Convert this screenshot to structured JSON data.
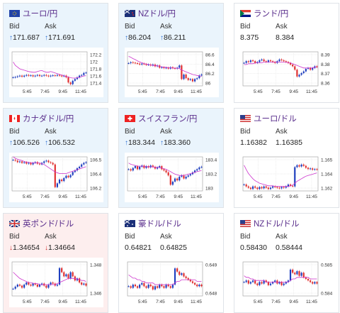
{
  "colors": {
    "up_bg": "#eaf4fc",
    "down_bg": "#fdeeee",
    "title": "#5a2e8c",
    "up_arrow": "#2a6fd4",
    "down_arrow": "#d23030",
    "candle_up": "#1f3fbf",
    "candle_down": "#e03030",
    "ma_line": "#cc33cc"
  },
  "labels": {
    "bid": "Bid",
    "ask": "Ask"
  },
  "xticks": [
    "5:45",
    "7:45",
    "9:45",
    "11:45"
  ],
  "cards": [
    {
      "title": "ユーロ/円",
      "flag": "eu",
      "state": "up",
      "arrow": "↑",
      "bid": "171.687",
      "ask": "171.691",
      "yticks": [
        "172.2",
        "172",
        "171.8",
        "171.6",
        "171.4"
      ],
      "chart_data": {
        "type": "candlestick",
        "ylim": [
          171.3,
          172.3
        ],
        "close": [
          171.55,
          171.56,
          171.58,
          171.6,
          171.57,
          171.6,
          171.62,
          171.6,
          171.61,
          171.58,
          171.6,
          171.62,
          171.59,
          171.6,
          171.62,
          171.6,
          171.58,
          171.6,
          171.61,
          171.6,
          171.62,
          171.6,
          171.58,
          171.6,
          171.55,
          171.4,
          171.35,
          171.45,
          171.5,
          171.55,
          171.6,
          171.62,
          171.68,
          171.69
        ],
        "ma": [
          172.0,
          171.9,
          171.85,
          171.8,
          171.78,
          171.76,
          171.74,
          171.72,
          171.71,
          171.7,
          171.7,
          171.72,
          171.74,
          171.75,
          171.72,
          171.7,
          171.7,
          171.72,
          171.7,
          171.68,
          171.66,
          171.64,
          171.62,
          171.6,
          171.58,
          171.56,
          171.54,
          171.53,
          171.53,
          171.54,
          171.55,
          171.57,
          171.59,
          171.6
        ]
      }
    },
    {
      "title": "NZドル/円",
      "flag": "nz",
      "state": "up",
      "arrow": "↑",
      "bid": "86.204",
      "ask": "86.211",
      "yticks": [
        "86.6",
        "86.4",
        "86.2",
        "86"
      ],
      "chart_data": {
        "type": "candlestick",
        "ylim": [
          85.95,
          86.7
        ],
        "close": [
          86.45,
          86.47,
          86.46,
          86.45,
          86.44,
          86.42,
          86.44,
          86.43,
          86.41,
          86.42,
          86.4,
          86.42,
          86.38,
          86.4,
          86.35,
          86.36,
          86.34,
          86.35,
          86.33,
          86.36,
          86.34,
          86.33,
          86.35,
          86.4,
          86.1,
          86.2,
          86.12,
          86.08,
          86.1,
          86.05,
          86.1,
          86.12,
          86.18,
          86.2
        ],
        "ma": [
          86.6,
          86.58,
          86.55,
          86.53,
          86.5,
          86.48,
          86.46,
          86.44,
          86.43,
          86.42,
          86.41,
          86.4,
          86.4,
          86.39,
          86.38,
          86.37,
          86.36,
          86.36,
          86.35,
          86.35,
          86.34,
          86.34,
          86.34,
          86.33,
          86.3,
          86.28,
          86.26,
          86.24,
          86.22,
          86.2,
          86.19,
          86.18,
          86.17,
          86.16
        ]
      }
    },
    {
      "title": "ランド/円",
      "flag": "za",
      "state": "flat",
      "arrow": "",
      "bid": "8.375",
      "ask": "8.384",
      "yticks": [
        "8.39",
        "8.38",
        "8.37",
        "8.36"
      ],
      "chart_data": {
        "type": "candlestick",
        "ylim": [
          8.355,
          8.395
        ],
        "close": [
          8.382,
          8.384,
          8.383,
          8.385,
          8.384,
          8.382,
          8.383,
          8.385,
          8.386,
          8.384,
          8.383,
          8.385,
          8.384,
          8.383,
          8.382,
          8.384,
          8.386,
          8.385,
          8.384,
          8.383,
          8.382,
          8.38,
          8.378,
          8.374,
          8.366,
          8.368,
          8.37,
          8.372,
          8.375,
          8.376,
          8.374,
          8.376,
          8.378,
          8.377
        ],
        "ma": [
          8.38,
          8.38,
          8.381,
          8.381,
          8.381,
          8.382,
          8.382,
          8.382,
          8.382,
          8.383,
          8.383,
          8.383,
          8.383,
          8.383,
          8.383,
          8.383,
          8.383,
          8.383,
          8.383,
          8.383,
          8.382,
          8.382,
          8.381,
          8.38,
          8.379,
          8.378,
          8.377,
          8.376,
          8.376,
          8.376,
          8.376,
          8.376,
          8.377,
          8.377
        ]
      }
    },
    {
      "title": "カナダドル/円",
      "flag": "ca",
      "state": "up",
      "arrow": "↑",
      "bid": "106.526",
      "ask": "106.532",
      "yticks": [
        "106.5",
        "106.4",
        "106.2"
      ],
      "chart_data": {
        "type": "candlestick",
        "ylim": [
          106.15,
          106.6
        ],
        "close": [
          106.56,
          106.55,
          106.53,
          106.54,
          106.52,
          106.53,
          106.51,
          106.52,
          106.5,
          106.52,
          106.53,
          106.51,
          106.5,
          106.52,
          106.54,
          106.55,
          106.53,
          106.52,
          106.5,
          106.2,
          106.25,
          106.3,
          106.28,
          106.32,
          106.35,
          106.33,
          106.36,
          106.4,
          106.42,
          106.45,
          106.47,
          106.5,
          106.52,
          106.53
        ],
        "ma": [
          106.6,
          106.58,
          106.57,
          106.56,
          106.55,
          106.54,
          106.53,
          106.53,
          106.52,
          106.52,
          106.52,
          106.52,
          106.52,
          106.51,
          106.5,
          106.48,
          106.46,
          106.44,
          106.42,
          106.4,
          106.39,
          106.38,
          106.38,
          106.38,
          106.38,
          106.39,
          106.4,
          106.41,
          106.42,
          106.43,
          106.44,
          106.45,
          106.46,
          106.47
        ]
      }
    },
    {
      "title": "スイスフラン/円",
      "flag": "ch",
      "state": "up",
      "arrow": "↑",
      "bid": "183.344",
      "ask": "183.360",
      "yticks": [
        "183.4",
        "183.2",
        "183"
      ],
      "chart_data": {
        "type": "candlestick",
        "ylim": [
          182.95,
          183.5
        ],
        "close": [
          183.3,
          183.28,
          183.32,
          183.35,
          183.3,
          183.34,
          183.36,
          183.32,
          183.35,
          183.33,
          183.36,
          183.34,
          183.31,
          183.33,
          183.35,
          183.3,
          183.28,
          183.25,
          183.2,
          183.05,
          183.1,
          183.15,
          183.12,
          183.18,
          183.2,
          183.15,
          183.18,
          183.2,
          183.22,
          183.25,
          183.28,
          183.3,
          183.33,
          183.34
        ],
        "ma": [
          183.4,
          183.38,
          183.37,
          183.36,
          183.35,
          183.35,
          183.35,
          183.35,
          183.34,
          183.34,
          183.34,
          183.34,
          183.33,
          183.33,
          183.33,
          183.32,
          183.31,
          183.3,
          183.28,
          183.26,
          183.24,
          183.22,
          183.21,
          183.2,
          183.2,
          183.2,
          183.21,
          183.22,
          183.23,
          183.24,
          183.25,
          183.26,
          183.27,
          183.28
        ]
      }
    },
    {
      "title": "ユーロ/ドル",
      "flag": "us",
      "state": "flat",
      "arrow": "",
      "bid": "1.16382",
      "ask": "1.16385",
      "yticks": [
        "1.165",
        "1.164",
        "1.162"
      ],
      "chart_data": {
        "type": "candlestick",
        "ylim": [
          1.1605,
          1.1658
        ],
        "close": [
          1.1615,
          1.1612,
          1.161,
          1.1608,
          1.1612,
          1.161,
          1.1608,
          1.1611,
          1.1609,
          1.1612,
          1.161,
          1.1608,
          1.161,
          1.1612,
          1.1611,
          1.161,
          1.1609,
          1.1611,
          1.161,
          1.1612,
          1.1615,
          1.1613,
          1.1612,
          1.1642,
          1.1645,
          1.1643,
          1.1646,
          1.1644,
          1.1641,
          1.1639,
          1.164,
          1.1638,
          1.1639,
          1.1638
        ],
        "ma": [
          1.1645,
          1.1638,
          1.1632,
          1.1628,
          1.1624,
          1.1621,
          1.1619,
          1.1617,
          1.1616,
          1.1615,
          1.1614,
          1.1613,
          1.1613,
          1.1613,
          1.1612,
          1.1612,
          1.1612,
          1.1612,
          1.1612,
          1.1612,
          1.1612,
          1.1613,
          1.1614,
          1.1617,
          1.162,
          1.1622,
          1.1624,
          1.1626,
          1.1628,
          1.1629,
          1.163,
          1.1631,
          1.1632,
          1.1633
        ]
      }
    },
    {
      "title": "英ポンド/ドル",
      "flag": "gb",
      "state": "down",
      "arrow": "↓",
      "bid": "1.34654",
      "ask": "1.34664",
      "yticks": [
        "1.348",
        "1.346"
      ],
      "chart_data": {
        "type": "candlestick",
        "ylim": [
          1.3455,
          1.3488
        ],
        "close": [
          1.3462,
          1.3464,
          1.3466,
          1.3465,
          1.3463,
          1.3466,
          1.3468,
          1.3466,
          1.3465,
          1.3467,
          1.3466,
          1.3464,
          1.3466,
          1.3467,
          1.3465,
          1.3463,
          1.3466,
          1.3468,
          1.3467,
          1.3465,
          1.3466,
          1.3482,
          1.3478,
          1.3474,
          1.3476,
          1.3472,
          1.3478,
          1.3474,
          1.347,
          1.3472,
          1.3468,
          1.3466,
          1.3467,
          1.3465
        ],
        "ma": [
          1.3478,
          1.3476,
          1.3474,
          1.3472,
          1.3471,
          1.347,
          1.3469,
          1.3468,
          1.3468,
          1.3467,
          1.3467,
          1.3467,
          1.3466,
          1.3466,
          1.3466,
          1.3466,
          1.3466,
          1.3466,
          1.3466,
          1.3466,
          1.3467,
          1.3468,
          1.3469,
          1.347,
          1.3471,
          1.3472,
          1.3472,
          1.3472,
          1.3472,
          1.3471,
          1.3471,
          1.347,
          1.347,
          1.3469
        ]
      }
    },
    {
      "title": "豪ドル/ドル",
      "flag": "au",
      "state": "flat",
      "arrow": "",
      "bid": "0.64821",
      "ask": "0.64825",
      "yticks": [
        "0.649",
        "0.648"
      ],
      "chart_data": {
        "type": "candlestick",
        "ylim": [
          0.6476,
          0.6497
        ],
        "close": [
          0.6482,
          0.6481,
          0.6483,
          0.6482,
          0.6481,
          0.6483,
          0.6484,
          0.6482,
          0.6481,
          0.6483,
          0.6482,
          0.648,
          0.6482,
          0.6481,
          0.6483,
          0.6482,
          0.6481,
          0.6483,
          0.6482,
          0.6481,
          0.6483,
          0.6493,
          0.6491,
          0.6489,
          0.649,
          0.6488,
          0.6487,
          0.6486,
          0.6485,
          0.6484,
          0.6483,
          0.6482,
          0.6483,
          0.6482
        ],
        "ma": [
          0.6489,
          0.6488,
          0.6487,
          0.6487,
          0.6486,
          0.6486,
          0.6485,
          0.6485,
          0.6484,
          0.6484,
          0.6484,
          0.6484,
          0.6483,
          0.6483,
          0.6483,
          0.6483,
          0.6483,
          0.6483,
          0.6483,
          0.6483,
          0.6483,
          0.6484,
          0.6485,
          0.6485,
          0.6486,
          0.6486,
          0.6486,
          0.6486,
          0.6486,
          0.6486,
          0.6486,
          0.6485,
          0.6485,
          0.6485
        ]
      }
    },
    {
      "title": "NZドル/ドル",
      "flag": "us",
      "state": "flat",
      "arrow": "",
      "bid": "0.58430",
      "ask": "0.58444",
      "yticks": [
        "0.585",
        "0.584"
      ],
      "chart_data": {
        "type": "candlestick",
        "ylim": [
          0.5835,
          0.5857
        ],
        "close": [
          0.5844,
          0.5845,
          0.5843,
          0.5844,
          0.5845,
          0.5843,
          0.5842,
          0.5844,
          0.5843,
          0.5845,
          0.5844,
          0.5842,
          0.5843,
          0.5844,
          0.5845,
          0.5843,
          0.5844,
          0.5842,
          0.5843,
          0.5844,
          0.5845,
          0.5852,
          0.585,
          0.5849,
          0.5851,
          0.5848,
          0.585,
          0.5847,
          0.5846,
          0.5845,
          0.5844,
          0.5843,
          0.5844,
          0.5843
        ],
        "ma": [
          0.5848,
          0.5847,
          0.5847,
          0.5846,
          0.5846,
          0.5845,
          0.5845,
          0.5845,
          0.5845,
          0.5845,
          0.5844,
          0.5844,
          0.5844,
          0.5844,
          0.5844,
          0.5844,
          0.5844,
          0.5844,
          0.5844,
          0.5844,
          0.5844,
          0.5845,
          0.5846,
          0.5846,
          0.5847,
          0.5847,
          0.5847,
          0.5847,
          0.5847,
          0.5847,
          0.5846,
          0.5846,
          0.5846,
          0.5846
        ]
      }
    }
  ]
}
